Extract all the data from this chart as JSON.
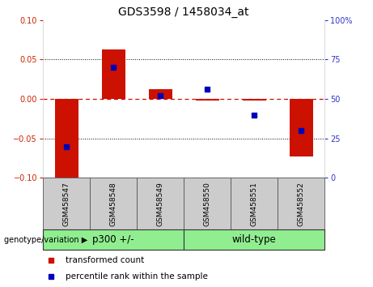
{
  "title": "GDS3598 / 1458034_at",
  "samples": [
    "GSM458547",
    "GSM458548",
    "GSM458549",
    "GSM458550",
    "GSM458551",
    "GSM458552"
  ],
  "transformed_counts": [
    -0.102,
    0.063,
    0.012,
    -0.002,
    -0.002,
    -0.073
  ],
  "percentile_ranks": [
    20,
    70,
    52,
    56,
    40,
    30
  ],
  "group_defs": [
    {
      "label": "p300 +/-",
      "start": 0,
      "end": 3,
      "color": "#90ee90"
    },
    {
      "label": "wild-type",
      "start": 3,
      "end": 6,
      "color": "#90ee90"
    }
  ],
  "ylim_left": [
    -0.1,
    0.1
  ],
  "ylim_right": [
    0,
    100
  ],
  "yticks_left": [
    -0.1,
    -0.05,
    0,
    0.05,
    0.1
  ],
  "yticks_right": [
    0,
    25,
    50,
    75,
    100
  ],
  "bar_color": "#cc1100",
  "dot_color": "#0000bb",
  "hline_color": "#cc1100",
  "dot_line_color": "#4444ff",
  "grid_color": "black",
  "legend_labels": [
    "transformed count",
    "percentile rank within the sample"
  ],
  "xlabel_group": "genotype/variation",
  "sample_bg_color": "#cccccc",
  "bar_width": 0.5,
  "title_fontsize": 10,
  "tick_fontsize": 7,
  "sample_fontsize": 6.5,
  "group_fontsize": 8.5,
  "legend_fontsize": 7.5
}
